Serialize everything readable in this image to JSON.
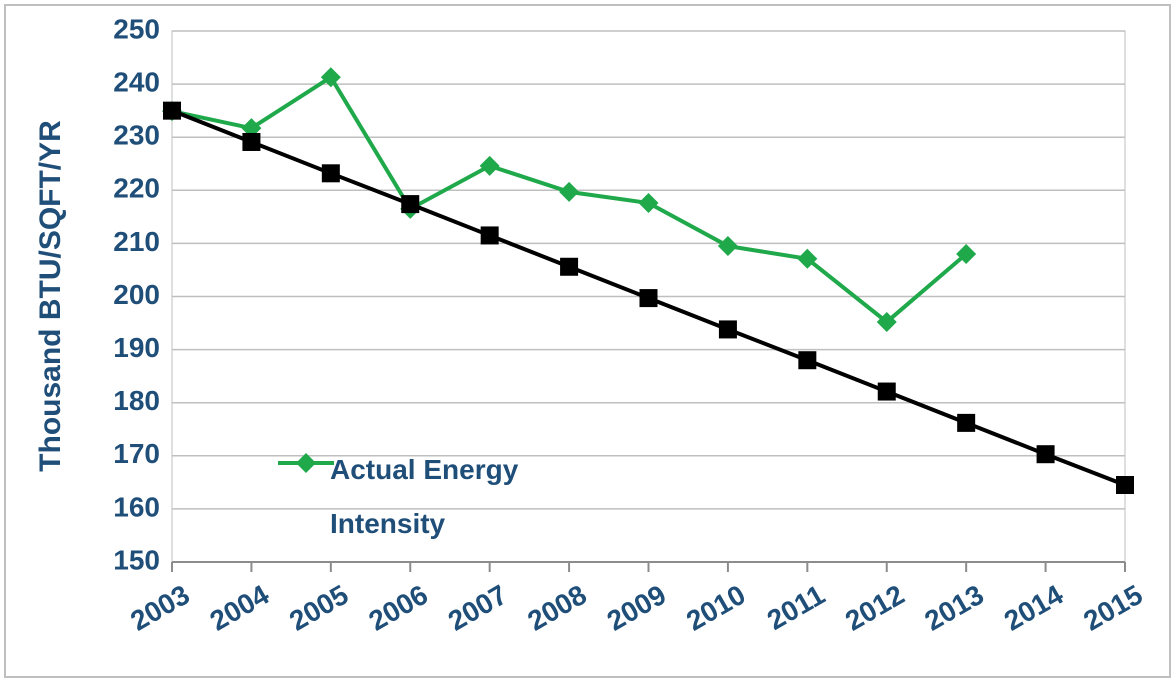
{
  "chart_data": {
    "type": "line",
    "y_label": "Thousand BTU/SQFT/YR",
    "categories": [
      "2003",
      "2004",
      "2005",
      "2006",
      "2007",
      "2008",
      "2009",
      "2010",
      "2011",
      "2012",
      "2013",
      "2014",
      "2015"
    ],
    "series": [
      {
        "name": "Actual Energy Intensity",
        "color": "#1fa94b",
        "marker": "diamond",
        "values": [
          234.9,
          231.7,
          241.3,
          216.5,
          224.6,
          219.7,
          217.6,
          209.5,
          207.1,
          195.2,
          208.0,
          null,
          null
        ]
      },
      {
        "color": "#000000",
        "marker": "square",
        "values": [
          235.0,
          229.1,
          223.2,
          217.4,
          211.5,
          205.6,
          199.7,
          193.8,
          188.0,
          182.1,
          176.2,
          170.3,
          164.5
        ]
      }
    ],
    "ylim": [
      150,
      250
    ],
    "yticks": [
      150,
      160,
      170,
      180,
      190,
      200,
      210,
      220,
      230,
      240,
      250
    ],
    "grid": true
  }
}
